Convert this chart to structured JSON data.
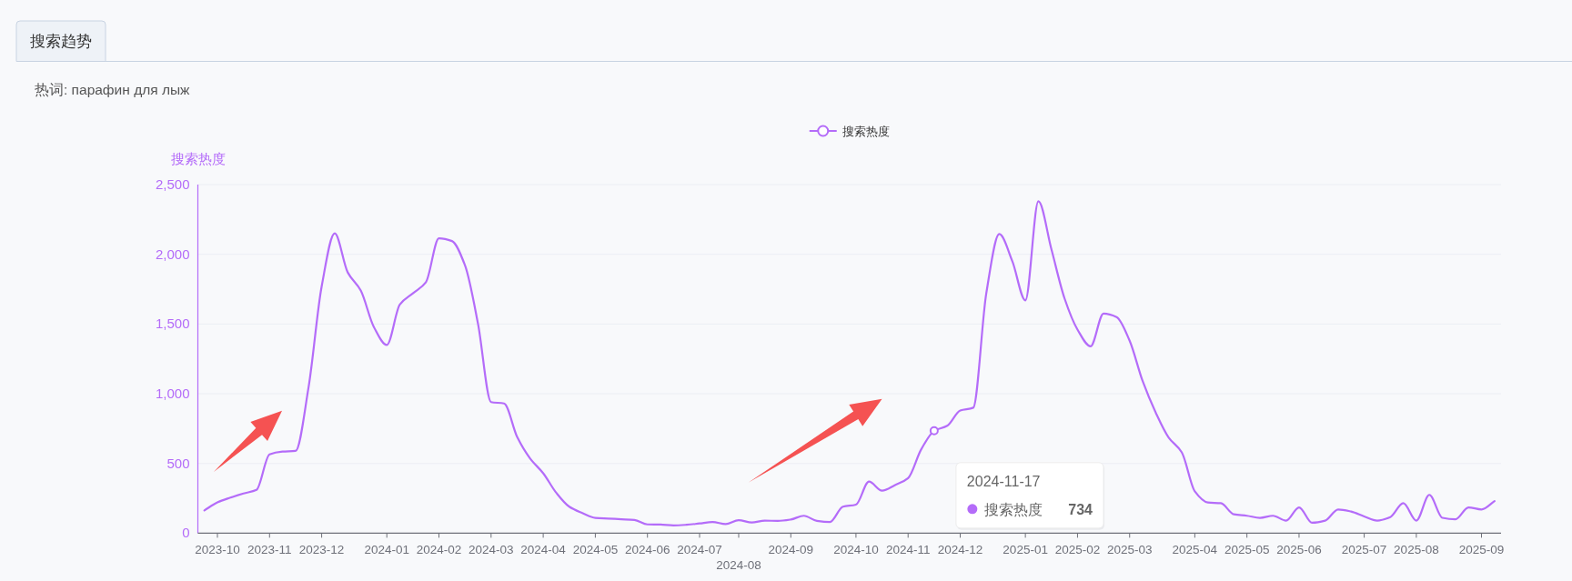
{
  "chart_data": {
    "type": "line",
    "title": "搜索趋势",
    "subtitle": "热词: парафин для лыж",
    "ylabel": "搜索热度",
    "categories": [
      null,
      "2023-10",
      null,
      null,
      null,
      "2023-11",
      null,
      null,
      null,
      "2023-12",
      null,
      null,
      null,
      null,
      "2024-01",
      null,
      null,
      null,
      "2024-02",
      null,
      null,
      null,
      "2024-03",
      null,
      null,
      null,
      "2024-04",
      null,
      null,
      null,
      "2024-05",
      null,
      null,
      null,
      "2024-06",
      null,
      null,
      null,
      "2024-07",
      null,
      null,
      "2024-08",
      null,
      null,
      null,
      "2024-09",
      null,
      null,
      null,
      null,
      "2024-10",
      null,
      null,
      null,
      "2024-11",
      null,
      null,
      null,
      "2024-12",
      null,
      null,
      null,
      null,
      "2025-01",
      null,
      null,
      null,
      "2025-02",
      null,
      null,
      null,
      "2025-03",
      null,
      null,
      null,
      null,
      "2025-04",
      null,
      null,
      null,
      "2025-05",
      null,
      null,
      null,
      "2025-06",
      null,
      null,
      null,
      null,
      "2025-07",
      null,
      null,
      null,
      "2025-08",
      null,
      null,
      null,
      null,
      "2025-09",
      null
    ],
    "series": [
      {
        "name": "搜索热度",
        "color": "#b46cf9",
        "values": [
          163,
          221,
          255,
          285,
          310,
          565,
          585,
          590,
          1050,
          1770,
          2150,
          1870,
          1740,
          1480,
          1350,
          1640,
          1720,
          1800,
          2115,
          2095,
          1920,
          1500,
          940,
          930,
          690,
          535,
          430,
          290,
          190,
          145,
          110,
          105,
          100,
          95,
          63,
          62,
          56,
          60,
          70,
          80,
          65,
          93,
          77,
          90,
          88,
          98,
          125,
          88,
          80,
          190,
          205,
          370,
          305,
          345,
          395,
          600,
          734,
          770,
          880,
          900,
          1720,
          2145,
          1950,
          1670,
          2380,
          2035,
          1685,
          1460,
          1340,
          1575,
          1550,
          1380,
          1090,
          865,
          685,
          580,
          300,
          220,
          215,
          135,
          125,
          110,
          125,
          90,
          185,
          75,
          90,
          170,
          155,
          120,
          90,
          115,
          215,
          90,
          275,
          110,
          100,
          185,
          170,
          230
        ]
      }
    ],
    "ylim": [
      0,
      2500
    ],
    "yticks": [
      0,
      500,
      {
        "value": 1000,
        "label": "1,000"
      },
      {
        "value": 1500,
        "label": "1,500"
      },
      {
        "value": 2000,
        "label": "2,000"
      },
      {
        "value": 2500,
        "label": "2,500"
      }
    ],
    "grid": "y",
    "legend": "top",
    "annotations": [
      "2024-11-17",
      "搜索热度 **734**"
    ]
  }
}
